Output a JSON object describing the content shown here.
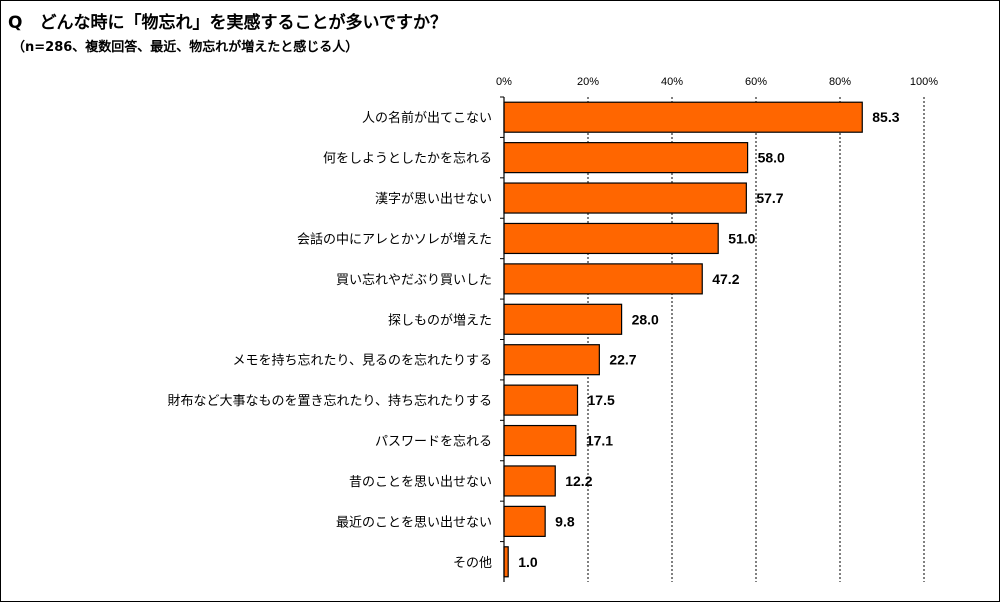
{
  "title": "Q　どんな時に「物忘れ」を実感することが多いですか？",
  "subtitle": "（n=286、複数回答、最近、物忘れが増えたと感じる人）",
  "colors": {
    "bar": "#FF6600",
    "bar_stroke": "#000000",
    "grid": "#000000"
  },
  "chart_data": {
    "type": "bar",
    "orientation": "horizontal",
    "categories": [
      "人の名前が出てこない",
      "何をしようとしたかを忘れる",
      "漢字が思い出せない",
      "会話の中にアレとかソレが増えた",
      "買い忘れやだぶり買いした",
      "探しものが増えた",
      "メモを持ち忘れたり、見るのを忘れたりする",
      "財布など大事なものを置き忘れたり、持ち忘れたりする",
      "パスワードを忘れる",
      "昔のことを思い出せない",
      "最近のことを思い出せない",
      "その他"
    ],
    "values": [
      85.3,
      58.0,
      57.7,
      51.0,
      47.2,
      28.0,
      22.7,
      17.5,
      17.1,
      12.2,
      9.8,
      1.0
    ],
    "value_labels": [
      "85.3",
      "58.0",
      "57.7",
      "51.0",
      "47.2",
      "28.0",
      "22.7",
      "17.5",
      "17.1",
      "12.2",
      "9.8",
      "1.0"
    ],
    "xlim": [
      0,
      100
    ],
    "xticks": [
      0,
      20,
      40,
      60,
      80,
      100
    ],
    "xtick_labels": [
      "0%",
      "20%",
      "40%",
      "60%",
      "80%",
      "100%"
    ],
    "grid": true,
    "legend": "none"
  }
}
